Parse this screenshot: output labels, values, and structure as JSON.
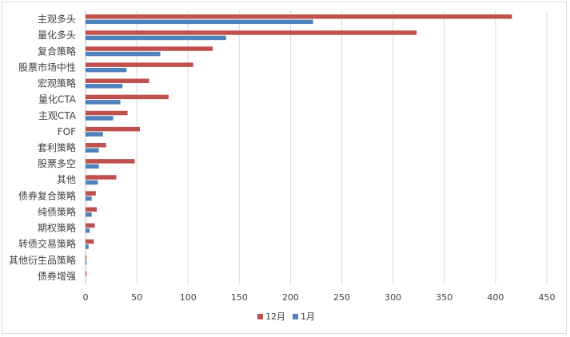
{
  "chart_data": {
    "type": "bar",
    "orientation": "horizontal",
    "categories": [
      "主观多头",
      "量化多头",
      "复合策略",
      "股票市场中性",
      "宏观策略",
      "量化CTA",
      "主观CTA",
      "FOF",
      "套利策略",
      "股票多空",
      "其他",
      "债券复合策略",
      "纯债策略",
      "期权策略",
      "转债交易策略",
      "其他衍生品策略",
      "债券增强"
    ],
    "series": [
      {
        "name": "12月",
        "color": "#c0504d",
        "values": [
          416,
          323,
          124,
          105,
          62,
          81,
          41,
          53,
          20,
          48,
          30,
          10,
          11,
          9,
          8,
          1,
          1
        ]
      },
      {
        "name": "1月",
        "color": "#4f81bd",
        "values": [
          222,
          137,
          73,
          40,
          36,
          34,
          27,
          17,
          13,
          13,
          12,
          6,
          6,
          4,
          3,
          1,
          0
        ]
      }
    ],
    "xlim": [
      0,
      450
    ],
    "xticks": [
      0,
      50,
      100,
      150,
      200,
      250,
      300,
      350,
      400,
      450
    ],
    "grid": true,
    "legend_position": "bottom"
  }
}
